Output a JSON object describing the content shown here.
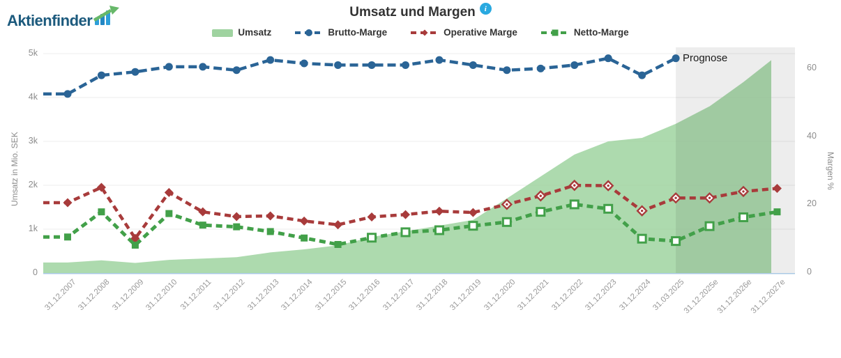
{
  "header": {
    "logo_text": "Aktienfinder",
    "title": "Umsatz und Margen",
    "info_icon_glyph": "i"
  },
  "colors": {
    "area_green": "#9fd3a0",
    "brutto_blue": "#2a6496",
    "operative_red": "#a83b3b",
    "netto_green": "#42a049",
    "forecast_band": "rgba(0,0,0,0.07)",
    "grid": "#ececec",
    "baseline_blue": "#aac9e5",
    "axis_text": "#8c8c8c",
    "info_blue": "#29a9e0",
    "logo_blue": "#1c5a7d"
  },
  "chart_data": {
    "type": "area+line",
    "title": "Umsatz und Margen",
    "categories": [
      "31.12.2007",
      "31.12.2008",
      "31.12.2009",
      "31.12.2010",
      "31.12.2011",
      "31.12.2012",
      "31.12.2013",
      "31.12.2014",
      "31.12.2015",
      "31.12.2016",
      "31.12.2017",
      "31.12.2018",
      "31.12.2019",
      "31.12.2020",
      "31.12.2021",
      "31.12.2022",
      "31.12.2023",
      "31.12.2024",
      "31.03.2025",
      "31.12.2025e",
      "31.12.2026e",
      "31.12.2027e"
    ],
    "series": [
      {
        "name": "Umsatz",
        "type": "area",
        "axis": "left",
        "unit": "Mio. SEK",
        "color": "#9fd3a0",
        "values": [
          240,
          290,
          230,
          300,
          330,
          360,
          470,
          540,
          630,
          820,
          950,
          1080,
          1210,
          1700,
          2200,
          2700,
          3000,
          3080,
          3400,
          3800,
          4350,
          4850
        ]
      },
      {
        "name": "Brutto-Marge",
        "type": "line",
        "axis": "right",
        "unit": "%",
        "color": "#2a6496",
        "marker": "circle",
        "values": [
          52.5,
          58,
          59,
          60.5,
          60.5,
          59.5,
          62.5,
          61.5,
          61,
          61,
          61,
          62.5,
          61,
          59.5,
          60,
          61,
          63,
          58,
          63,
          null,
          null,
          null
        ]
      },
      {
        "name": "Operative Marge",
        "type": "line",
        "axis": "right",
        "unit": "%",
        "color": "#a83b3b",
        "marker": "diamond",
        "values": [
          20.5,
          25,
          10,
          23.5,
          17.8,
          16.4,
          16.6,
          15.1,
          14,
          16.3,
          17,
          18,
          17.6,
          20,
          22.5,
          25.6,
          25.5,
          18.1,
          21.9,
          21.9,
          23.8,
          24.7
        ]
      },
      {
        "name": "Netto-Marge",
        "type": "line",
        "axis": "right",
        "unit": "%",
        "color": "#42a049",
        "marker": "square",
        "values": [
          10.4,
          17.8,
          8,
          17.3,
          13.9,
          13.4,
          12,
          10.1,
          8.2,
          10.2,
          11.8,
          12.4,
          13.7,
          14.8,
          17.8,
          20,
          18.7,
          9.9,
          9.2,
          13.6,
          16.2,
          17.8
        ]
      }
    ],
    "left_axis": {
      "title": "Umsatz in Mio. SEK",
      "ticks": [
        "0",
        "1k",
        "2k",
        "3k",
        "4k",
        "5k"
      ],
      "min": 0,
      "max": 5000
    },
    "right_axis": {
      "title": "Margen %",
      "ticks": [
        "0",
        "20",
        "40",
        "60"
      ],
      "min": 0,
      "max": 66
    },
    "forecast": {
      "label": "Prognose",
      "start_category": "31.03.2025"
    },
    "legend_position": "top",
    "grid": true
  }
}
